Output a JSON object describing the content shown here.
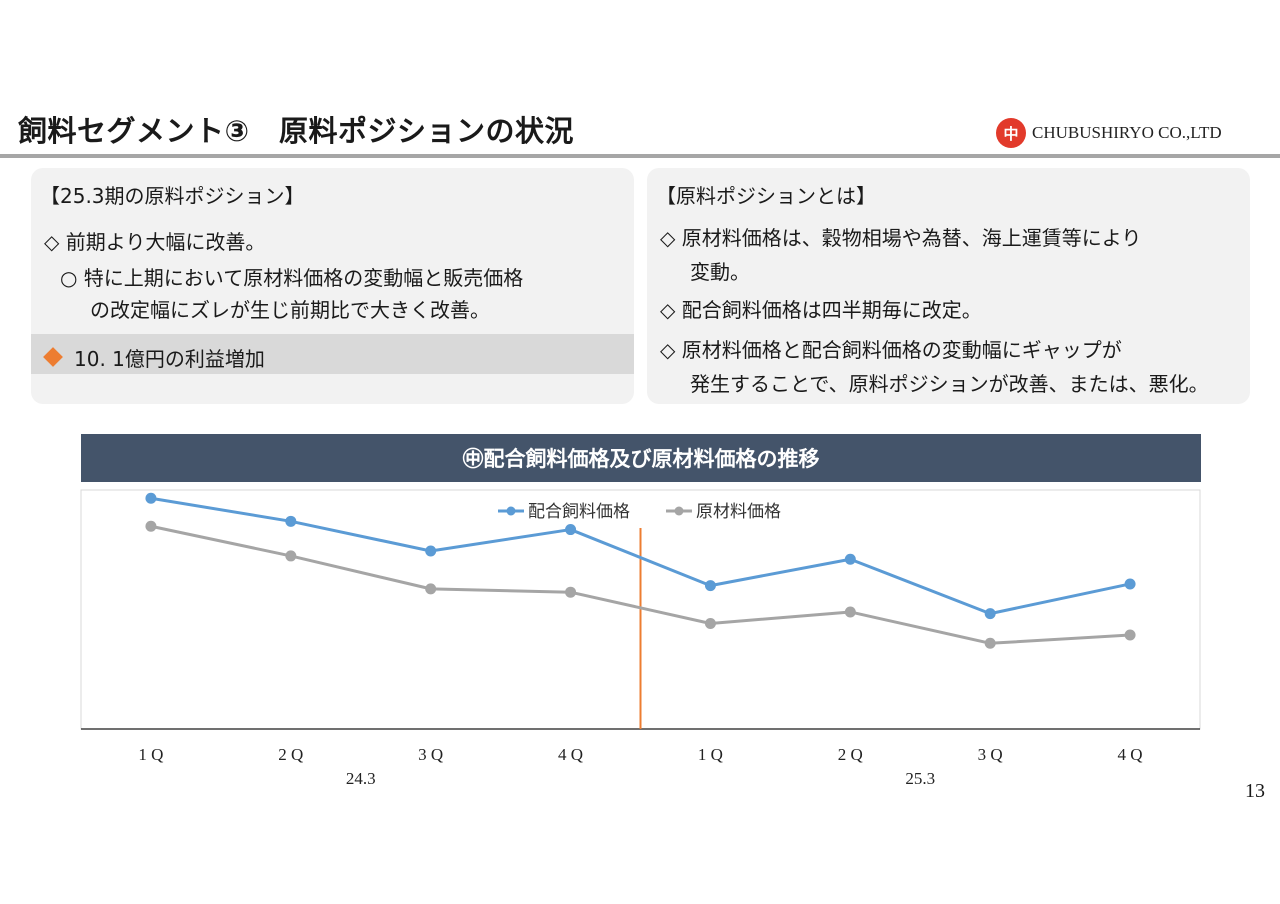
{
  "header": {
    "title": "飼料セグメント③　原料ポジションの状況",
    "company": "CHUBUSHIRYO CO.,LTD",
    "logo_char": "中"
  },
  "left_panel": {
    "heading": "【25.3期の原料ポジション】",
    "line1": "◇ 前期より大幅に改善。",
    "line2": "○ 特に上期において原材料価格の変動幅と販売価格",
    "line3": "の改定幅にズレが生じ前期比で大きく改善。",
    "highlight": "10. 1億円の利益増加"
  },
  "right_panel": {
    "heading": "【原料ポジションとは】",
    "line1": "◇ 原材料価格は、穀物相場や為替、海上運賃等により",
    "line2": "変動。",
    "line3": "◇ 配合飼料価格は四半期毎に改定。",
    "line4": "◇ 原材料価格と配合飼料価格の変動幅にギャップが",
    "line5": "発生することで、原料ポジションが改善、または、悪化。"
  },
  "banner": "㊥配合飼料価格及び原材料価格の推移",
  "page_number": "13",
  "chart_data": {
    "type": "line",
    "title": "㊥配合飼料価格及び原材料価格の推移",
    "categories": [
      "1Q",
      "2Q",
      "3Q",
      "4Q",
      "1Q",
      "2Q",
      "3Q",
      "4Q"
    ],
    "category_labels": [
      "1 Q",
      "2 Q",
      "3 Q",
      "4 Q",
      "1 Q",
      "2 Q",
      "3 Q",
      "4 Q"
    ],
    "groups": [
      {
        "label": "24.3",
        "from": 0,
        "to": 3
      },
      {
        "label": "25.3",
        "from": 4,
        "to": 7
      }
    ],
    "series": [
      {
        "name": "配合飼料価格",
        "color": "#5b9bd5",
        "values": [
          100,
          86,
          68,
          81,
          47,
          63,
          30,
          48
        ]
      },
      {
        "name": "原材料価格",
        "color": "#a5a5a5",
        "values": [
          83,
          65,
          45,
          43,
          24,
          31,
          12,
          17
        ]
      }
    ],
    "ylim": [
      -40,
      105
    ],
    "y_axis_labels": false,
    "divider_after_index": 3,
    "divider_color": "#ed7d31",
    "legend_position": "top-center",
    "grid": false
  }
}
